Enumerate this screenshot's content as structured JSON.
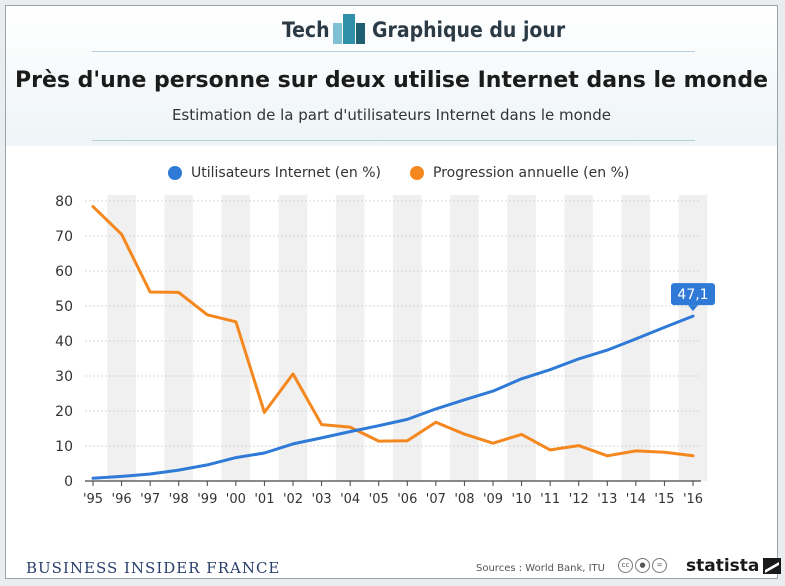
{
  "header": {
    "tech_label": "Tech",
    "daily_label": "Graphique du jour"
  },
  "chart_data": {
    "type": "line",
    "title": "Près d'une personne sur deux utilise Internet dans le monde",
    "subtitle": "Estimation de la part d'utilisateurs Internet dans le monde",
    "categories": [
      "'95",
      "'96",
      "'97",
      "'98",
      "'99",
      "'00",
      "'01",
      "'02",
      "'03",
      "'04",
      "'05",
      "'06",
      "'07",
      "'08",
      "'09",
      "'10",
      "'11",
      "'12",
      "'13",
      "'14",
      "'15",
      "'16"
    ],
    "series": [
      {
        "name": "Utilisateurs Internet (en %)",
        "color": "#2f7ad6",
        "values": [
          0.8,
          1.3,
          2.0,
          3.1,
          4.6,
          6.7,
          8.0,
          10.6,
          12.3,
          14.1,
          15.8,
          17.6,
          20.6,
          23.2,
          25.7,
          29.2,
          31.8,
          34.9,
          37.4,
          40.6,
          43.9,
          47.1
        ]
      },
      {
        "name": "Progression annuelle (en %)",
        "color": "#f5871f",
        "values": [
          78.4,
          70.5,
          54.0,
          53.9,
          47.5,
          45.5,
          19.6,
          30.6,
          16.1,
          15.4,
          11.4,
          11.5,
          16.8,
          13.4,
          10.8,
          13.3,
          8.9,
          10.1,
          7.2,
          8.6,
          8.2,
          7.2
        ]
      }
    ],
    "ylim": [
      0,
      80
    ],
    "yticks": [
      0,
      10,
      20,
      30,
      40,
      50,
      60,
      70,
      80
    ],
    "grid": true,
    "alternating_column_shading": true,
    "legend_position": "top",
    "callout": {
      "series": 0,
      "label": "47,1",
      "category": "'16"
    }
  },
  "footer": {
    "brand": "BUSINESS INSIDER FRANCE",
    "source": "Sources : World Bank, ITU",
    "cc_icons": [
      "cc-icon",
      "by-icon",
      "nd-icon"
    ],
    "logo": "statista"
  },
  "colors": {
    "accent_teal": "#2f8fa8",
    "rule": "#b6cfdb",
    "text": "#333333",
    "shade": "#f0f0f0"
  }
}
